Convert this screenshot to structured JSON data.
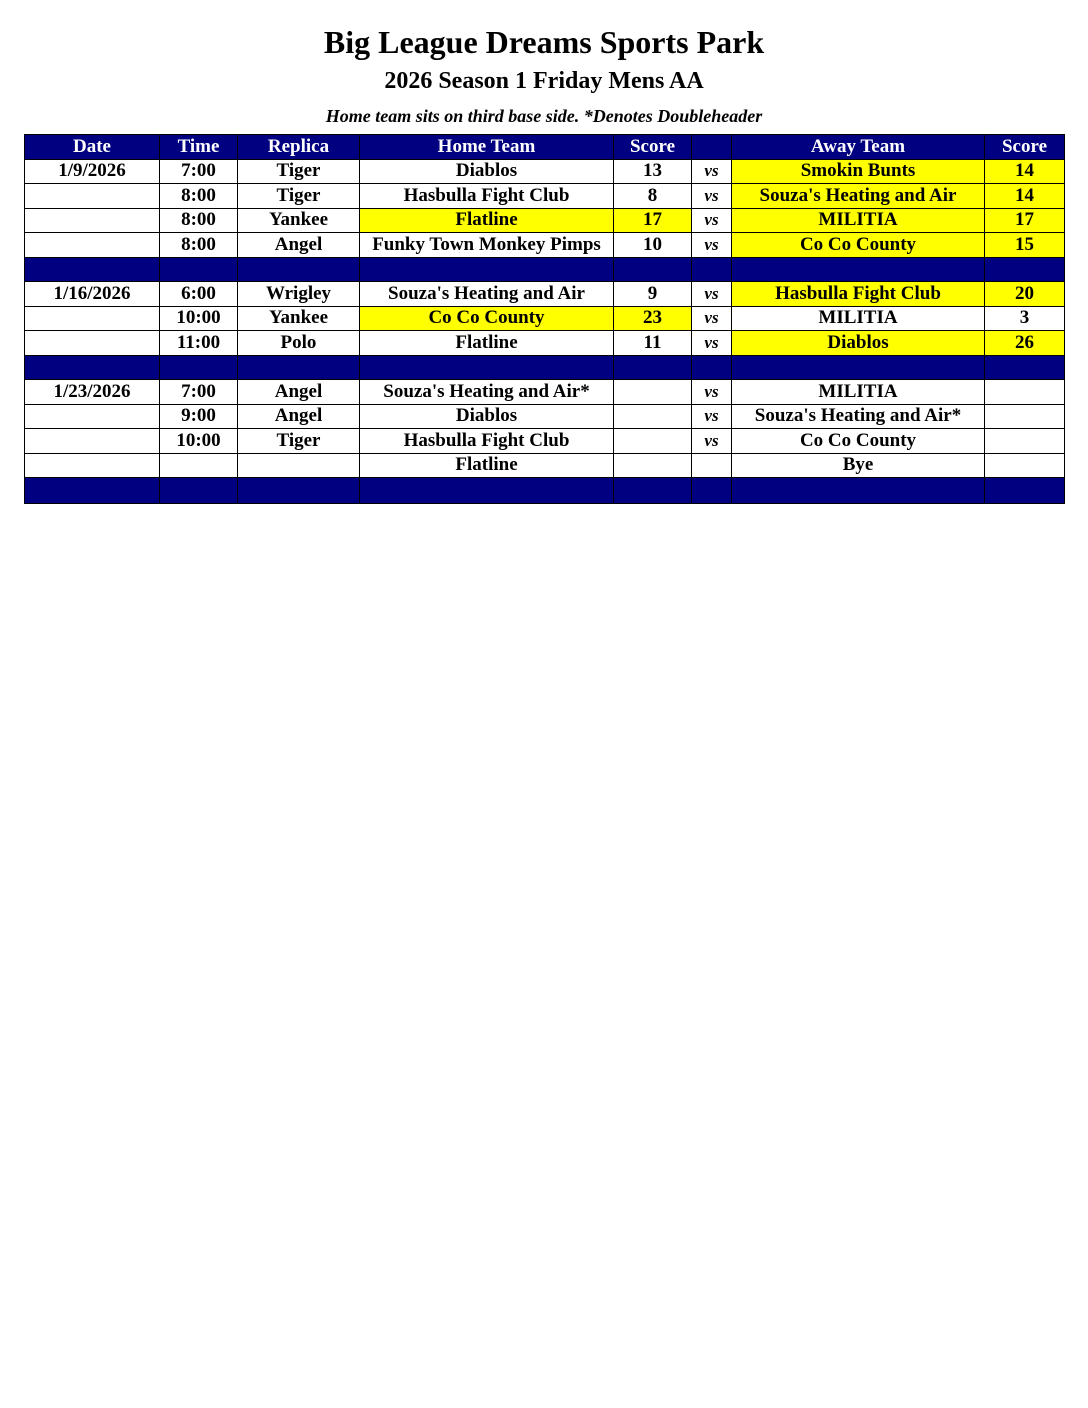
{
  "header": {
    "title": "Big League Dreams Sports Park",
    "subtitle": "2026 Season 1 Friday Mens AA",
    "note": "Home team sits on third base side.  *Denotes Doubleheader"
  },
  "colors": {
    "header_bg": "#000080",
    "winner_highlight": "#ffff00"
  },
  "table": {
    "columns": [
      "Date",
      "Time",
      "Replica",
      "Home Team",
      "Score",
      "",
      "Away Team",
      "Score"
    ],
    "rows": [
      {
        "date": "1/9/2026",
        "time": "7:00",
        "replica": "Tiger",
        "home": "Diablos",
        "home_score": "13",
        "vs": "vs",
        "away": "Smokin Bunts",
        "away_score": "14",
        "highlight": "away"
      },
      {
        "date": "",
        "time": "8:00",
        "replica": "Tiger",
        "home": "Hasbulla Fight Club",
        "home_score": "8",
        "vs": "vs",
        "away": "Souza's Heating and Air",
        "away_score": "14",
        "highlight": "away"
      },
      {
        "date": "",
        "time": "8:00",
        "replica": "Yankee",
        "home": "Flatline",
        "home_score": "17",
        "vs": "vs",
        "away": "MILITIA",
        "away_score": "17",
        "highlight": "both"
      },
      {
        "date": "",
        "time": "8:00",
        "replica": "Angel",
        "home": "Funky Town Monkey Pimps",
        "home_score": "10",
        "vs": "vs",
        "away": "Co Co County",
        "away_score": "15",
        "highlight": "away"
      },
      {
        "separator": true
      },
      {
        "date": "1/16/2026",
        "time": "6:00",
        "replica": "Wrigley",
        "home": "Souza's Heating and Air",
        "home_score": "9",
        "vs": "vs",
        "away": "Hasbulla Fight Club",
        "away_score": "20",
        "highlight": "away"
      },
      {
        "date": "",
        "time": "10:00",
        "replica": "Yankee",
        "home": "Co Co County",
        "home_score": "23",
        "vs": "vs",
        "away": "MILITIA",
        "away_score": "3",
        "highlight": "home"
      },
      {
        "date": "",
        "time": "11:00",
        "replica": "Polo",
        "home": "Flatline",
        "home_score": "11",
        "vs": "vs",
        "away": "Diablos",
        "away_score": "26",
        "highlight": "away"
      },
      {
        "separator": true
      },
      {
        "date": "1/23/2026",
        "time": "7:00",
        "replica": "Angel",
        "home": "Souza's Heating and Air*",
        "home_score": "",
        "vs": "vs",
        "away": "MILITIA",
        "away_score": "",
        "highlight": "none"
      },
      {
        "date": "",
        "time": "9:00",
        "replica": "Angel",
        "home": "Diablos",
        "home_score": "",
        "vs": "vs",
        "away": "Souza's Heating and Air*",
        "away_score": "",
        "highlight": "none"
      },
      {
        "date": "",
        "time": "10:00",
        "replica": "Tiger",
        "home": "Hasbulla Fight Club",
        "home_score": "",
        "vs": "vs",
        "away": "Co Co County",
        "away_score": "",
        "highlight": "none"
      },
      {
        "date": "",
        "time": "",
        "replica": "",
        "home": "Flatline",
        "home_score": "",
        "vs": "",
        "away": "Bye",
        "away_score": "",
        "highlight": "none"
      },
      {
        "separator": true
      }
    ]
  }
}
